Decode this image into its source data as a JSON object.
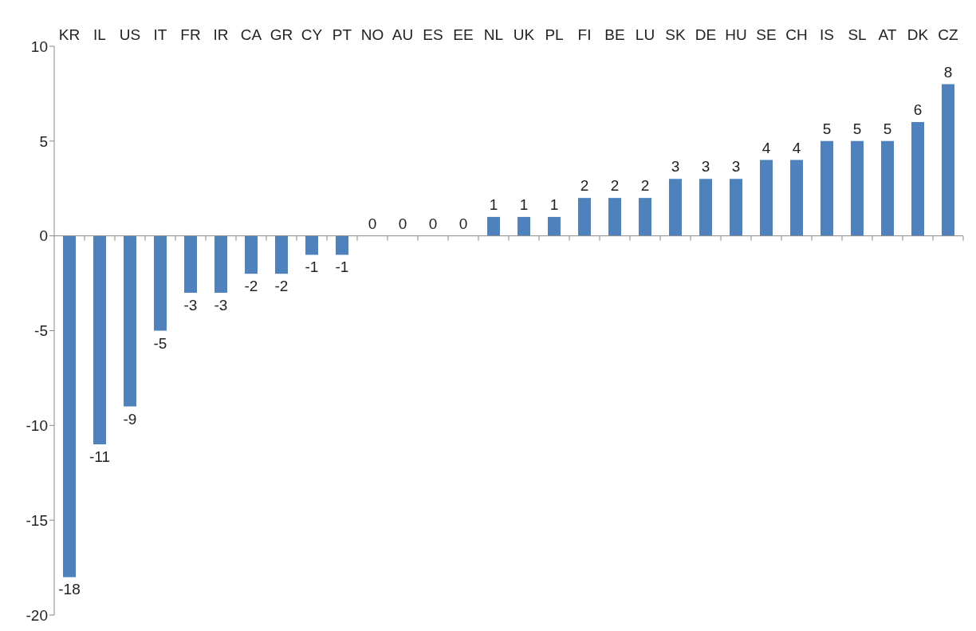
{
  "chart_data": {
    "type": "bar",
    "categories": [
      "KR",
      "IL",
      "US",
      "IT",
      "FR",
      "IR",
      "CA",
      "GR",
      "CY",
      "PT",
      "NO",
      "AU",
      "ES",
      "EE",
      "NL",
      "UK",
      "PL",
      "FI",
      "BE",
      "LU",
      "SK",
      "DE",
      "HU",
      "SE",
      "CH",
      "IS",
      "SL",
      "AT",
      "DK",
      "CZ"
    ],
    "values": [
      -18,
      -11,
      -9,
      -5,
      -3,
      -3,
      -2,
      -2,
      -1,
      -1,
      0,
      0,
      0,
      0,
      1,
      1,
      1,
      2,
      2,
      2,
      3,
      3,
      3,
      4,
      4,
      5,
      5,
      5,
      6,
      8
    ],
    "color": "#4f81bd",
    "ylim": [
      -20,
      10
    ],
    "yticks": [
      -20,
      -15,
      -10,
      -5,
      0,
      5,
      10
    ],
    "data_labels": true
  }
}
